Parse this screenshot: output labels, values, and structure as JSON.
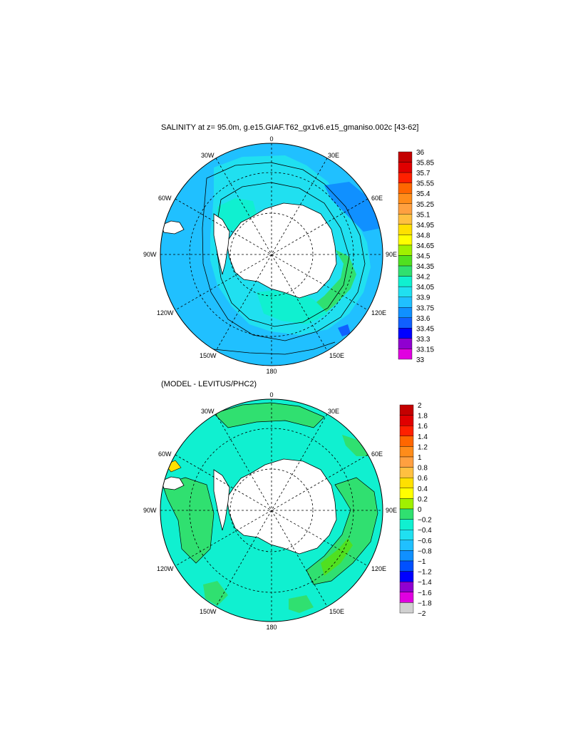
{
  "panels": [
    {
      "title": "SALINITY at z=  95.0m, g.e15.GIAF.T62_gx1v6.e15_gmaniso.002c [43-62]",
      "longitude_labels": [
        "0",
        "30E",
        "60E",
        "90E",
        "120E",
        "150E",
        "180",
        "150W",
        "120W",
        "90W",
        "60W",
        "30W"
      ],
      "colorbar": {
        "labels": [
          "36",
          "35.85",
          "35.7",
          "35.55",
          "35.4",
          "35.25",
          "35.1",
          "34.95",
          "34.8",
          "34.65",
          "34.5",
          "34.35",
          "34.2",
          "34.05",
          "33.9",
          "33.75",
          "33.6",
          "33.45",
          "33.3",
          "33.15",
          "33"
        ],
        "colors": [
          "#c40000",
          "#e00000",
          "#ff2000",
          "#ff6600",
          "#ff8c1a",
          "#ffa040",
          "#ffc040",
          "#ffe000",
          "#ffff00",
          "#a0f000",
          "#50e020",
          "#30e070",
          "#10f0d0",
          "#20e0f0",
          "#20c0ff",
          "#1090ff",
          "#1060ff",
          "#0000ff",
          "#9000d0",
          "#e000e0",
          "#d0d0d0",
          "#707070"
        ]
      }
    },
    {
      "title": "(MODEL - LEVITUS/PHC2)",
      "longitude_labels": [
        "0",
        "30E",
        "60E",
        "90E",
        "120E",
        "150E",
        "180",
        "150W",
        "120W",
        "90W",
        "60W",
        "30W"
      ],
      "colorbar": {
        "labels": [
          "2",
          "1.8",
          "1.6",
          "1.4",
          "1.2",
          "1",
          "0.8",
          "0.6",
          "0.4",
          "0.2",
          "0",
          "−0.2",
          "−0.4",
          "−0.6",
          "−0.8",
          "−1",
          "−1.2",
          "−1.4",
          "−1.6",
          "−1.8",
          "−2"
        ],
        "colors": [
          "#c40000",
          "#e00000",
          "#ff2000",
          "#ff6600",
          "#ff8c1a",
          "#ffa040",
          "#ffc040",
          "#ffe000",
          "#ffff00",
          "#a0f000",
          "#30e070",
          "#10f0d0",
          "#20e0f0",
          "#20c0ff",
          "#1090ff",
          "#0050ff",
          "#0000ff",
          "#9000d0",
          "#e000e0",
          "#d0d0d0",
          "#707070"
        ]
      }
    }
  ]
}
